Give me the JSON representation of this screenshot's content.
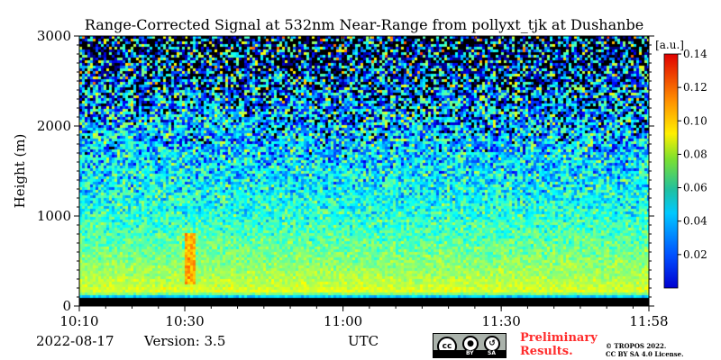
{
  "chart_data": {
    "type": "heatmap",
    "title": "Range-Corrected Signal at 532nm Near-Range from pollyxt_tjk at Dushanbe",
    "xlabel": "UTC",
    "ylabel": "Height (m)",
    "x_ticks": [
      "10:10",
      "10:30",
      "11:00",
      "11:30",
      "11:58"
    ],
    "x_tick_minutes": [
      610,
      630,
      660,
      690,
      718
    ],
    "xlim_minutes": [
      610,
      718
    ],
    "y_ticks": [
      0,
      1000,
      2000,
      3000
    ],
    "ylim": [
      0,
      3000
    ],
    "colorbar": {
      "unit": "[a.u.]",
      "ticks": [
        0.02,
        0.04,
        0.06,
        0.08,
        0.1,
        0.12,
        0.14
      ],
      "tick_labels": [
        "0.02",
        "0.04",
        "0.06",
        "0.08",
        "0.10",
        "0.12",
        "0.14"
      ],
      "range": [
        0,
        0.14
      ],
      "colormap": "jet"
    },
    "mean_profile": [
      {
        "height": 50,
        "value": 0.0
      },
      {
        "height": 150,
        "value": 0.083
      },
      {
        "height": 300,
        "value": 0.077
      },
      {
        "height": 500,
        "value": 0.071
      },
      {
        "height": 800,
        "value": 0.063
      },
      {
        "height": 1000,
        "value": 0.058
      },
      {
        "height": 1300,
        "value": 0.053
      },
      {
        "height": 1600,
        "value": 0.048
      },
      {
        "height": 2000,
        "value": 0.043
      },
      {
        "height": 2500,
        "value": 0.038
      },
      {
        "height": 3000,
        "value": 0.033
      }
    ],
    "feature": {
      "time_minutes": 631,
      "height_range": [
        250,
        800
      ],
      "value": 0.1
    }
  },
  "footer": {
    "date": "2022-08-17",
    "version": "Version: 3.5",
    "utc": "UTC",
    "preliminary_line1": "Preliminary",
    "preliminary_line2": "Results.",
    "copyright_line1": "© TROPOS 2022.",
    "copyright_line2": "CC BY SA 4.0 License.",
    "cc_badge": {
      "by": "BY",
      "sa": "SA"
    }
  },
  "colors": {
    "preliminary": "#ff2b2b"
  }
}
